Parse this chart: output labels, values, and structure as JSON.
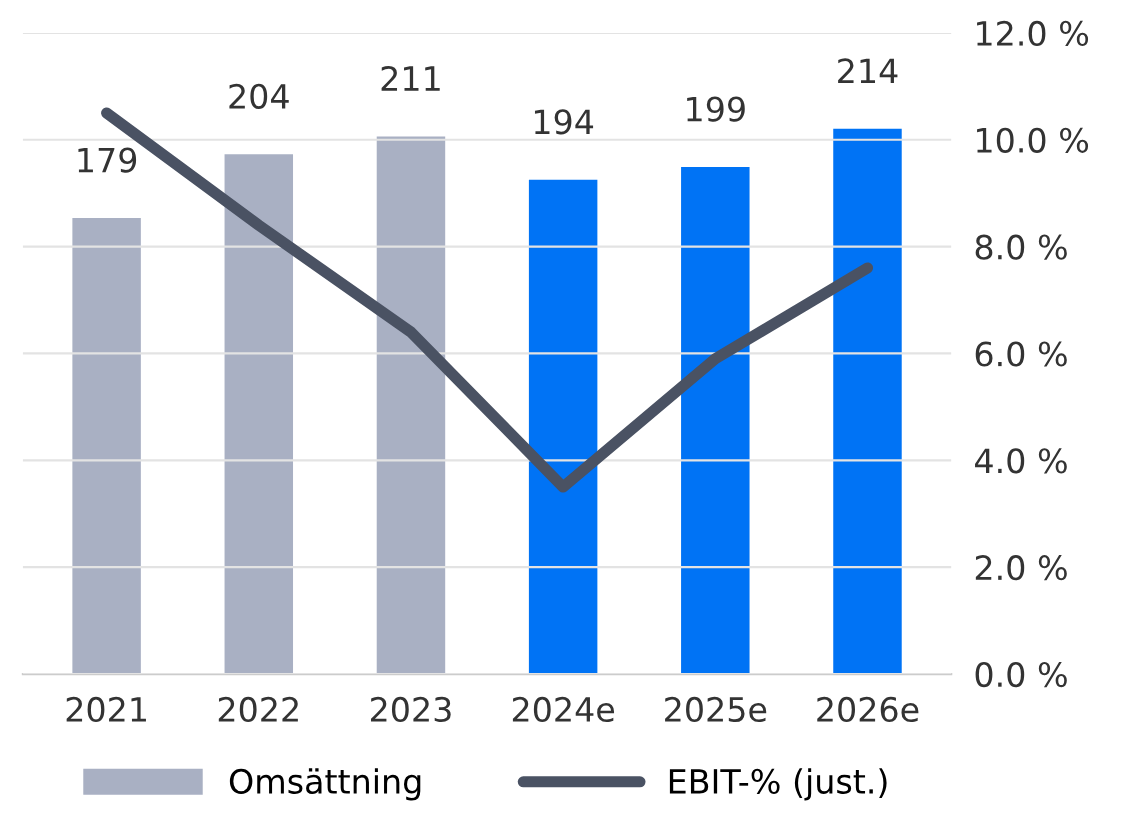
{
  "chart_data": {
    "type": "bar",
    "categories": [
      "2021",
      "2022",
      "2023",
      "2024e",
      "2025e",
      "2026e"
    ],
    "series": [
      {
        "name": "Omsättning",
        "color": "#a9b0c3",
        "colors": [
          "#a9b0c3",
          "#a9b0c3",
          "#a9b0c3",
          "#0073f5",
          "#0073f5",
          "#0073f5"
        ],
        "values": [
          179,
          204,
          211,
          194,
          199,
          214
        ],
        "data_labels": true
      },
      {
        "name": "EBIT-% (just.)",
        "type": "line",
        "axis": "y2",
        "color": "#4a5263",
        "values": [
          10.5,
          8.4,
          6.4,
          3.5,
          5.9,
          7.6
        ]
      }
    ],
    "y2lim": [
      0,
      12
    ],
    "y2ticks": [
      {
        "value": 0,
        "label": "0.0 %"
      },
      {
        "value": 2,
        "label": "2.0 %"
      },
      {
        "value": 4,
        "label": "4.0 %"
      },
      {
        "value": 6,
        "label": "6.0 %"
      },
      {
        "value": 8,
        "label": "8.0 %"
      },
      {
        "value": 10,
        "label": "10.0 %"
      },
      {
        "value": 12,
        "label": "12.0 %"
      }
    ],
    "grid": "y",
    "legend": "bottom",
    "marker": "none",
    "line_style": "solid"
  }
}
